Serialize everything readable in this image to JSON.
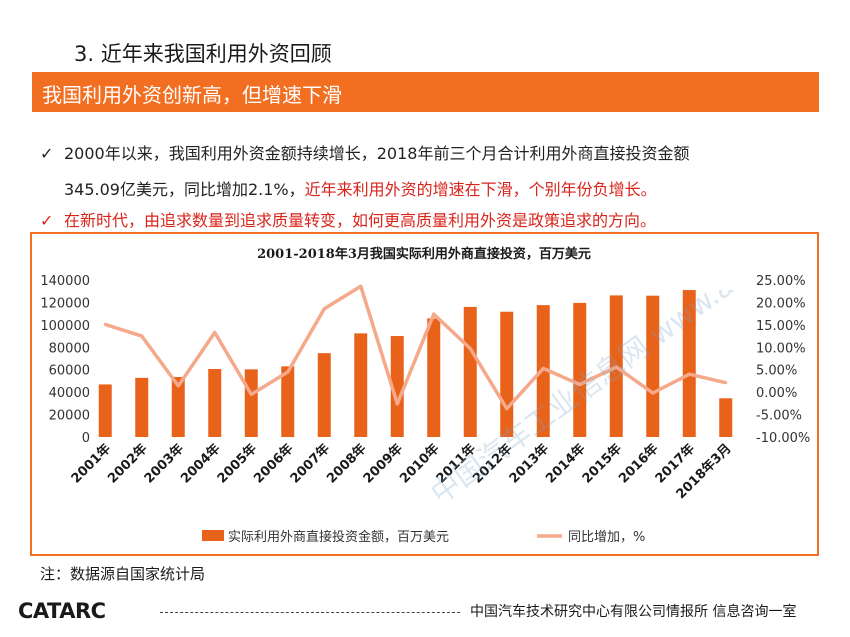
{
  "header": {
    "section_title": "3. 近年来我国利用外资回顾",
    "banner": "我国利用外资创新高，但增速下滑"
  },
  "bullets": {
    "check_glyph": "✓",
    "b1_line1": "2000年以来，我国利用外资金额持续增长，2018年前三个月合计利用外商直接投资金额",
    "b1_line2_black": "345.09亿美元，同比增加2.1%，",
    "b1_line2_red": "近年来利用外资的增速在下滑，个别年份负增长。",
    "b2": "在新时代，由追求数量到追求质量转变，如何更高质量利用外资是政策追求的方向。"
  },
  "chart_data": {
    "type": "bar+line",
    "title": "2001-2018年3月我国实际利用外商直接投资，百万美元",
    "categories": [
      "2001年",
      "2002年",
      "2003年",
      "2004年",
      "2005年",
      "2006年",
      "2007年",
      "2008年",
      "2009年",
      "2010年",
      "2011年",
      "2012年",
      "2013年",
      "2014年",
      "2015年",
      "2016年",
      "2017年",
      "2018年3月"
    ],
    "series": [
      {
        "name": "实际利用外商直接投资金额，百万美元",
        "type": "bar",
        "axis": "left",
        "color": "#e8621a",
        "values": [
          46878,
          52743,
          53505,
          60630,
          60325,
          63021,
          74768,
          92395,
          90033,
          105735,
          116011,
          111716,
          117586,
          119562,
          126267,
          126001,
          131035,
          34509
        ]
      },
      {
        "name": "同比增加，%",
        "type": "line",
        "axis": "right",
        "color": "#f5a98a",
        "values": [
          15.1,
          12.5,
          1.4,
          13.3,
          -0.5,
          4.5,
          18.6,
          23.6,
          -2.6,
          17.4,
          9.7,
          -3.7,
          5.3,
          1.7,
          5.6,
          -0.2,
          4.0,
          2.1
        ]
      }
    ],
    "y_left": {
      "min": 0,
      "max": 140000,
      "ticks": [
        "0",
        "20000",
        "40000",
        "60000",
        "80000",
        "100000",
        "120000",
        "140000"
      ]
    },
    "y_right": {
      "min": -10,
      "max": 25,
      "ticks": [
        "-10.00%",
        "-5.00%",
        "0.00%",
        "5.00%",
        "10.00%",
        "15.00%",
        "20.00%",
        "25.00%"
      ]
    },
    "grid": false,
    "legend_position": "bottom"
  },
  "note": "注：数据源自国家统计局",
  "footer": {
    "logo": "CATARC",
    "org": "中国汽车技术研究中心有限公司情报所  信息咨询一室"
  },
  "watermark": "中国汽车工业信息网 www.autoinfo.org.cn",
  "colors": {
    "accent": "#f26f21",
    "bar": "#e8621a",
    "line": "#f5a98a",
    "highlight_text": "#d9241c"
  }
}
